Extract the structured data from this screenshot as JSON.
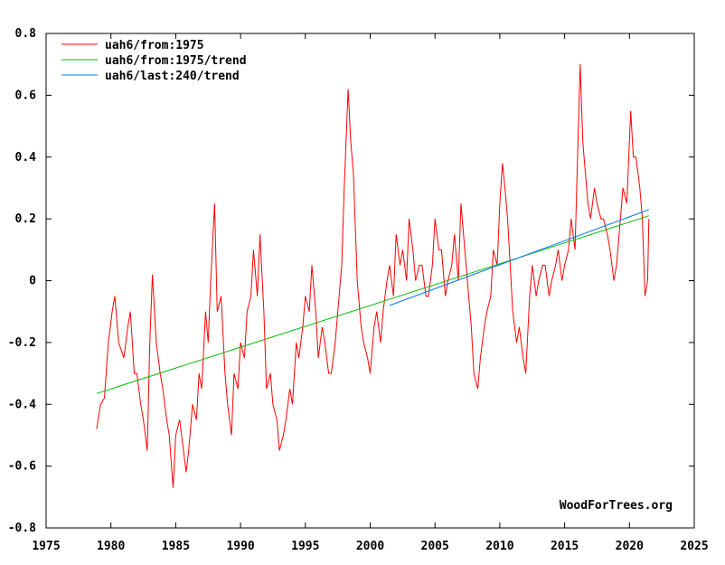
{
  "chart_data": {
    "type": "line",
    "title": "",
    "xlabel": "",
    "ylabel": "",
    "xlim": [
      1975,
      2025
    ],
    "ylim": [
      -0.8,
      0.8
    ],
    "x_ticks": [
      "1975",
      "1980",
      "1985",
      "1990",
      "1995",
      "2000",
      "2005",
      "2010",
      "2015",
      "2020",
      "2025"
    ],
    "y_ticks": [
      "-0.8",
      "-0.6",
      "-0.4",
      "-0.2",
      "0",
      "0.2",
      "0.4",
      "0.6",
      "0.8"
    ],
    "grid": false,
    "legend_position": "top-left",
    "watermark": "WoodForTrees.org",
    "series": [
      {
        "name": "uah6/from:1975",
        "color": "#ff0000",
        "x": [
          1978.9,
          1979.2,
          1979.5,
          1979.8,
          1980.1,
          1980.3,
          1980.6,
          1981.0,
          1981.3,
          1981.5,
          1981.8,
          1982.0,
          1982.3,
          1982.5,
          1982.8,
          1983.0,
          1983.2,
          1983.5,
          1983.8,
          1984.0,
          1984.3,
          1984.5,
          1984.8,
          1985.0,
          1985.3,
          1985.6,
          1985.8,
          1986.0,
          1986.3,
          1986.6,
          1986.8,
          1987.0,
          1987.3,
          1987.5,
          1987.7,
          1988.0,
          1988.2,
          1988.5,
          1988.8,
          1989.0,
          1989.3,
          1989.5,
          1989.8,
          1990.0,
          1990.3,
          1990.5,
          1990.8,
          1991.0,
          1991.3,
          1991.5,
          1991.8,
          1992.0,
          1992.3,
          1992.5,
          1992.8,
          1993.0,
          1993.3,
          1993.5,
          1993.8,
          1994.0,
          1994.3,
          1994.5,
          1994.8,
          1995.0,
          1995.3,
          1995.5,
          1995.8,
          1996.0,
          1996.3,
          1996.5,
          1996.8,
          1997.0,
          1997.3,
          1997.5,
          1997.8,
          1998.0,
          1998.3,
          1998.5,
          1998.7,
          1999.0,
          1999.3,
          1999.5,
          1999.8,
          2000.0,
          2000.3,
          2000.5,
          2000.8,
          2001.0,
          2001.3,
          2001.5,
          2001.8,
          2002.0,
          2002.3,
          2002.5,
          2002.8,
          2003.0,
          2003.3,
          2003.5,
          2003.8,
          2004.0,
          2004.3,
          2004.5,
          2004.8,
          2005.0,
          2005.3,
          2005.5,
          2005.8,
          2006.0,
          2006.3,
          2006.5,
          2006.8,
          2007.0,
          2007.3,
          2007.5,
          2007.8,
          2008.0,
          2008.3,
          2008.5,
          2008.8,
          2009.0,
          2009.3,
          2009.5,
          2009.8,
          2010.0,
          2010.2,
          2010.4,
          2010.6,
          2010.8,
          2011.0,
          2011.3,
          2011.5,
          2011.8,
          2012.0,
          2012.3,
          2012.5,
          2012.8,
          2013.0,
          2013.3,
          2013.5,
          2013.8,
          2014.0,
          2014.3,
          2014.5,
          2014.8,
          2015.0,
          2015.3,
          2015.5,
          2015.8,
          2016.0,
          2016.2,
          2016.4,
          2016.6,
          2016.8,
          2017.0,
          2017.3,
          2017.5,
          2017.8,
          2018.0,
          2018.3,
          2018.5,
          2018.8,
          2019.0,
          2019.3,
          2019.5,
          2019.8,
          2020.1,
          2020.3,
          2020.5,
          2020.8,
          2021.0,
          2021.2,
          2021.4,
          2021.5
        ],
        "y": [
          -0.48,
          -0.4,
          -0.38,
          -0.2,
          -0.1,
          -0.05,
          -0.2,
          -0.25,
          -0.15,
          -0.1,
          -0.3,
          -0.3,
          -0.4,
          -0.45,
          -0.55,
          -0.2,
          0.02,
          -0.2,
          -0.3,
          -0.35,
          -0.45,
          -0.5,
          -0.67,
          -0.5,
          -0.45,
          -0.55,
          -0.62,
          -0.55,
          -0.4,
          -0.45,
          -0.3,
          -0.35,
          -0.1,
          -0.2,
          0.0,
          0.25,
          -0.1,
          -0.05,
          -0.3,
          -0.4,
          -0.5,
          -0.3,
          -0.35,
          -0.2,
          -0.25,
          -0.1,
          -0.05,
          0.1,
          -0.05,
          0.15,
          -0.1,
          -0.35,
          -0.3,
          -0.4,
          -0.45,
          -0.55,
          -0.5,
          -0.45,
          -0.35,
          -0.4,
          -0.2,
          -0.25,
          -0.15,
          -0.05,
          -0.1,
          0.05,
          -0.1,
          -0.25,
          -0.15,
          -0.2,
          -0.3,
          -0.3,
          -0.2,
          -0.1,
          0.05,
          0.3,
          0.62,
          0.45,
          0.35,
          0.0,
          -0.15,
          -0.2,
          -0.25,
          -0.3,
          -0.15,
          -0.1,
          -0.2,
          -0.1,
          0.0,
          0.05,
          -0.05,
          0.15,
          0.05,
          0.1,
          0.0,
          0.2,
          0.1,
          0.0,
          0.05,
          0.05,
          -0.05,
          -0.05,
          0.05,
          0.2,
          0.1,
          0.1,
          -0.05,
          0.0,
          0.05,
          0.15,
          0.0,
          0.25,
          0.1,
          0.0,
          -0.15,
          -0.3,
          -0.35,
          -0.25,
          -0.15,
          -0.1,
          -0.05,
          0.1,
          0.05,
          0.25,
          0.38,
          0.3,
          0.2,
          0.05,
          -0.1,
          -0.2,
          -0.15,
          -0.25,
          -0.3,
          -0.05,
          0.05,
          -0.05,
          0.0,
          0.05,
          0.05,
          -0.05,
          0.0,
          0.05,
          0.1,
          0.0,
          0.05,
          0.1,
          0.2,
          0.1,
          0.4,
          0.7,
          0.45,
          0.35,
          0.25,
          0.2,
          0.3,
          0.25,
          0.2,
          0.2,
          0.15,
          0.1,
          0.0,
          0.05,
          0.2,
          0.3,
          0.25,
          0.55,
          0.4,
          0.4,
          0.3,
          0.2,
          -0.05,
          0.0,
          0.2
        ]
      },
      {
        "name": "uah6/from:1975/trend",
        "color": "#00bb00",
        "x": [
          1978.9,
          2021.5
        ],
        "y": [
          -0.365,
          0.21
        ]
      },
      {
        "name": "uah6/last:240/trend",
        "color": "#0077ff",
        "x": [
          2001.5,
          2021.5
        ],
        "y": [
          -0.08,
          0.23
        ]
      }
    ]
  }
}
